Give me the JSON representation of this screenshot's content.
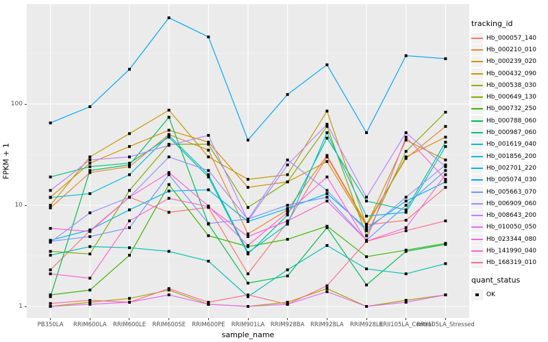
{
  "chart_data": {
    "type": "line",
    "title": "",
    "xlabel": "sample_name",
    "ylabel": "FPKM + 1",
    "y_scale": "log10",
    "y_ticks": [
      "1",
      "10",
      "100"
    ],
    "ylim": [
      0.77,
      970
    ],
    "grid": "white major gridlines at decades and each category; white minor gridlines at half-decades; gray panel",
    "legend_position": "right",
    "line_legend_title": "tracking_id",
    "point_legend": {
      "title": "quant_status",
      "items": [
        {
          "label": "OK",
          "marker": "black-square"
        }
      ]
    },
    "marker": "black-square",
    "categories": [
      "PB350LA",
      "RRIM600LA",
      "RRIM600LE",
      "RRIM600SE",
      "RRIM600PE",
      "RRIM901LA",
      "RRIM928BA",
      "RRIM928LA",
      "RRIM928LE",
      "RRII105LA_Control",
      "RRII105LA_Stressed"
    ],
    "series": [
      {
        "name": "Hb_000057_140",
        "color": "#F8766D",
        "values": [
          2.3,
          5.6,
          12,
          8.5,
          9.5,
          2.1,
          6.8,
          30,
          6.4,
          7.1,
          15
        ]
      },
      {
        "name": "Hb_000210_010",
        "color": "#EA8331",
        "values": [
          9.4,
          21,
          24,
          50,
          35,
          5.2,
          9.0,
          31,
          6.5,
          29,
          60
        ]
      },
      {
        "name": "Hb_000239_020",
        "color": "#D89000",
        "values": [
          12,
          26,
          38,
          55,
          42,
          15,
          17,
          27,
          6.2,
          30,
          47
        ]
      },
      {
        "name": "Hb_000432_090",
        "color": "#C09B00",
        "values": [
          10,
          30,
          51,
          87,
          30,
          18,
          20,
          85,
          6.3,
          44,
          28
        ]
      },
      {
        "name": "Hb_000538_030",
        "color": "#A3A500",
        "values": [
          1.0,
          1.1,
          1.2,
          1.45,
          1.05,
          1.0,
          1.1,
          1.5,
          1.0,
          1.15,
          1.3
        ]
      },
      {
        "name": "Hb_000649_130",
        "color": "#7CAE00",
        "values": [
          3.5,
          3.3,
          14,
          40,
          40,
          9.5,
          17,
          60,
          5.0,
          34,
          83
        ]
      },
      {
        "name": "Hb_000732_250",
        "color": "#39B600",
        "values": [
          1.3,
          1.45,
          3.2,
          16,
          5.0,
          3.9,
          4.6,
          6.2,
          3.1,
          3.6,
          4.2
        ]
      },
      {
        "name": "Hb_000788_060",
        "color": "#00BB4E",
        "values": [
          1.25,
          22,
          25,
          74,
          6.5,
          1.7,
          2.0,
          6.0,
          1.63,
          3.5,
          4.1
        ]
      },
      {
        "name": "Hb_000987_060",
        "color": "#00C087",
        "values": [
          19,
          24,
          26,
          47,
          19,
          3.3,
          8.0,
          46,
          11,
          9.0,
          42
        ]
      },
      {
        "name": "Hb_001619_040",
        "color": "#00C0B5",
        "values": [
          3.2,
          3.9,
          3.8,
          3.5,
          2.8,
          1.25,
          2.3,
          4.0,
          2.35,
          2.1,
          2.65
        ]
      },
      {
        "name": "Hb_001856_200",
        "color": "#00BDD8",
        "values": [
          11.9,
          13,
          20,
          49,
          20,
          3.4,
          6.5,
          52,
          7.8,
          8.5,
          38
        ]
      },
      {
        "name": "Hb_002701_220",
        "color": "#00B4EF",
        "values": [
          4.5,
          5.7,
          9.0,
          13.8,
          14.2,
          6.9,
          9.3,
          13,
          5.9,
          11,
          17
        ]
      },
      {
        "name": "Hb_005074_030",
        "color": "#00A5FF",
        "values": [
          65,
          94,
          220,
          710,
          460,
          44,
          124,
          244,
          52,
          300,
          280
        ]
      },
      {
        "name": "Hb_005663_070",
        "color": "#7097FF",
        "values": [
          4.4,
          4.9,
          6.0,
          20,
          6.6,
          7.3,
          10,
          12,
          4.5,
          10,
          22
        ]
      },
      {
        "name": "Hb_006909_060",
        "color": "#9590FF",
        "values": [
          4.3,
          8.4,
          12,
          30,
          22,
          7.2,
          28,
          14,
          5.6,
          12,
          25
        ]
      },
      {
        "name": "Hb_008643_200",
        "color": "#BB80FF",
        "values": [
          14,
          28,
          30,
          39,
          49,
          7.0,
          25,
          63,
          12,
          52,
          24
        ]
      },
      {
        "name": "Hb_010050_050",
        "color": "#E76BF3",
        "values": [
          1.0,
          1.05,
          1.1,
          1.3,
          1.05,
          1.0,
          1.05,
          1.4,
          1.0,
          1.1,
          1.3
        ]
      },
      {
        "name": "Hb_023344_080",
        "color": "#F763E0",
        "values": [
          5.9,
          5.5,
          12,
          21,
          9.8,
          4.0,
          8.5,
          19,
          4.4,
          6.0,
          20
        ]
      },
      {
        "name": "Hb_141990_040",
        "color": "#FF61C8",
        "values": [
          2.1,
          1.9,
          7.0,
          11.7,
          9.7,
          4.9,
          7.0,
          11,
          4.5,
          47,
          18
        ]
      },
      {
        "name": "Hb_168319_010",
        "color": "#FF6B94",
        "values": [
          1.07,
          1.15,
          1.1,
          1.5,
          1.1,
          1.3,
          1.05,
          1.6,
          4.4,
          5.6,
          7.0
        ]
      }
    ]
  }
}
